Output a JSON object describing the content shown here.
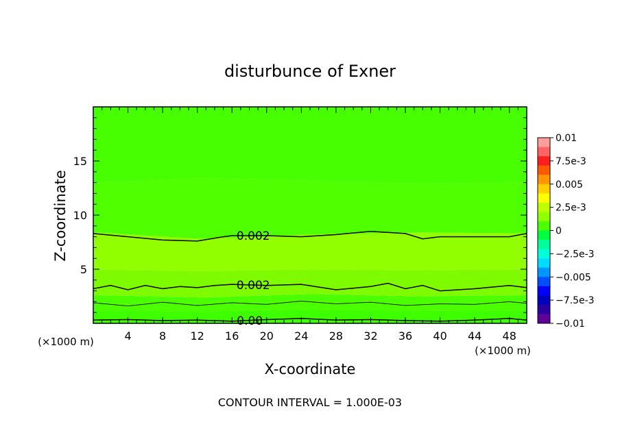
{
  "chart_data": {
    "type": "heatmap",
    "title": "disturbunce of Exner",
    "xlabel": "X-coordinate",
    "ylabel": "Z-coordinate",
    "x_unit": "(×1000 m)",
    "y_unit": "(×1000 m)",
    "xlim": [
      0,
      50
    ],
    "ylim": [
      0,
      20
    ],
    "x_ticks": [
      4,
      8,
      12,
      16,
      20,
      24,
      28,
      32,
      36,
      40,
      44,
      48
    ],
    "y_ticks": [
      5,
      10,
      15
    ],
    "footer": "CONTOUR INTERVAL = 1.000E-03",
    "colorbar": {
      "labels": [
        "0.01",
        "7.5e-3",
        "0.005",
        "2.5e-3",
        "0",
        "−2.5e-3",
        "−0.005",
        "−7.5e-3",
        "−0.01"
      ],
      "range": [
        -0.01,
        0.01
      ],
      "colors_top_to_bottom": [
        "#ff9d9d",
        "#ff6464",
        "#ff1e1e",
        "#ff5a00",
        "#ff9600",
        "#ffcf00",
        "#ffff00",
        "#c0ff00",
        "#90ff00",
        "#4bff00",
        "#00ff3f",
        "#00ff9a",
        "#00ffd8",
        "#00dcff",
        "#0096ff",
        "#0050ff",
        "#0000ff",
        "#0000c0",
        "#2a00a0",
        "#60009a"
      ]
    },
    "fill_bands": [
      {
        "name": "band-low",
        "value": 0.0005,
        "color": "#3dff00"
      },
      {
        "name": "band-mid",
        "value": 0.0015,
        "color": "#4bff00"
      },
      {
        "name": "band-upper",
        "value": 0.0025,
        "color": "#7ffb00"
      },
      {
        "name": "band-peak",
        "value": 0.0028,
        "color": "#91ff00"
      },
      {
        "name": "band-top",
        "value": 0.0018,
        "color": "#50ff00"
      },
      {
        "name": "band-sky",
        "value": 0.0012,
        "color": "#47ff00"
      }
    ],
    "contours": [
      {
        "name": "contour-0-00",
        "label": "0.00",
        "label_x": 17.5,
        "x": [
          0,
          4,
          8,
          12,
          16,
          20,
          24,
          28,
          32,
          36,
          40,
          44,
          48,
          50
        ],
        "y": [
          0.3,
          0.35,
          0.25,
          0.3,
          0.2,
          0.35,
          0.45,
          0.3,
          0.35,
          0.25,
          0.2,
          0.3,
          0.45,
          0.3
        ]
      },
      {
        "name": "contour-0-001",
        "label": "",
        "x": [
          0,
          4,
          8,
          12,
          16,
          20,
          24,
          28,
          32,
          36,
          40,
          44,
          48,
          50
        ],
        "y": [
          1.9,
          1.6,
          1.95,
          1.65,
          1.9,
          1.75,
          2.05,
          1.8,
          1.95,
          1.65,
          1.8,
          1.75,
          2.0,
          1.85
        ]
      },
      {
        "name": "contour-0-002-lower",
        "label": "0.002",
        "label_x": 17.9,
        "x": [
          0,
          2,
          4,
          6,
          8,
          10,
          12,
          14,
          16,
          20,
          24,
          28,
          32,
          34,
          36,
          38,
          40,
          44,
          48,
          50
        ],
        "y": [
          3.2,
          3.5,
          3.1,
          3.5,
          3.2,
          3.4,
          3.3,
          3.5,
          3.6,
          3.5,
          3.6,
          3.1,
          3.4,
          3.7,
          3.2,
          3.5,
          3.0,
          3.2,
          3.5,
          3.3
        ]
      },
      {
        "name": "contour-0-002-upper",
        "label": "0.002",
        "label_x": 17.9,
        "x": [
          0,
          4,
          8,
          12,
          15,
          16,
          20,
          24,
          28,
          32,
          36,
          38,
          40,
          44,
          48,
          50
        ],
        "y": [
          8.3,
          8.0,
          7.7,
          7.6,
          8.0,
          8.1,
          8.1,
          8.0,
          8.2,
          8.5,
          8.3,
          7.8,
          8.0,
          8.0,
          8.0,
          8.3
        ]
      }
    ],
    "legend": "right",
    "grid": false
  }
}
